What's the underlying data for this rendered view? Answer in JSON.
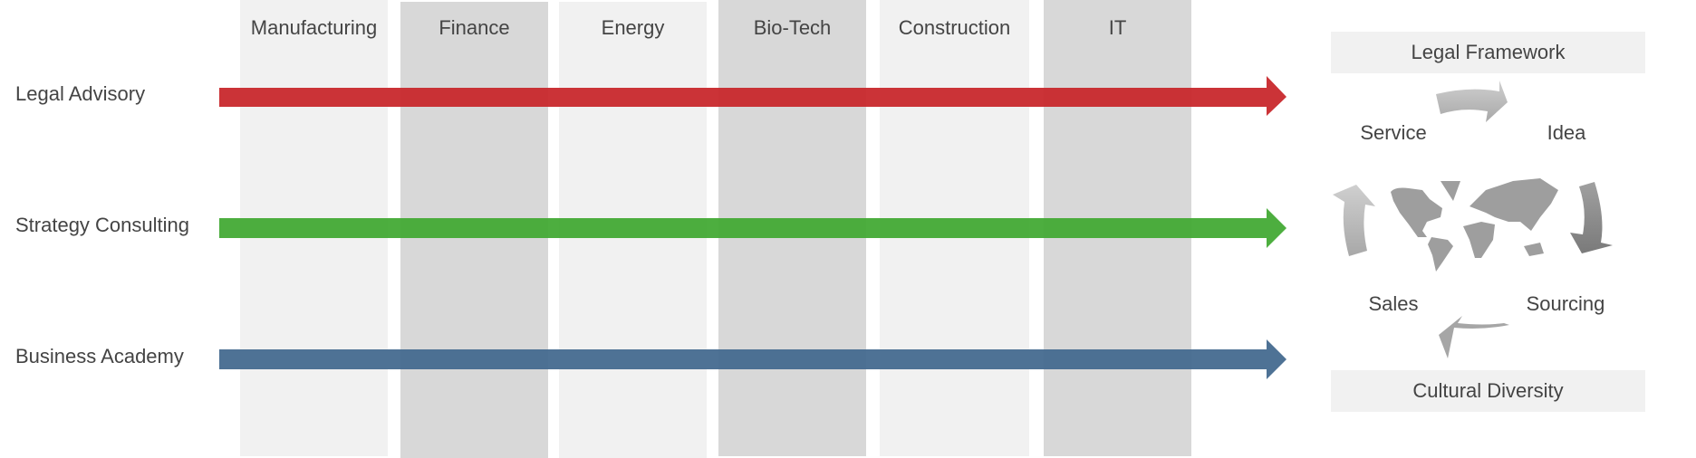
{
  "columns": [
    {
      "label": "Manufacturing",
      "shade": "#f1f1f1"
    },
    {
      "label": "Finance",
      "shade": "#d8d8d8"
    },
    {
      "label": "Energy",
      "shade": "#f1f1f1"
    },
    {
      "label": "Bio-Tech",
      "shade": "#d8d8d8"
    },
    {
      "label": "Construction",
      "shade": "#f1f1f1"
    },
    {
      "label": "IT",
      "shade": "#d8d8d8"
    }
  ],
  "rows": [
    {
      "label": "Legal Advisory",
      "color": "#c8282c"
    },
    {
      "label": "Strategy Consulting",
      "color": "#44aa35"
    },
    {
      "label": "Business Academy",
      "color": "#456a8f"
    }
  ],
  "cycle": {
    "top_box": "Legal Framework",
    "bottom_box": "Cultural Diversity",
    "steps": [
      "Service",
      "Idea",
      "Sourcing",
      "Sales"
    ],
    "center_icon": "world-map-icon"
  }
}
